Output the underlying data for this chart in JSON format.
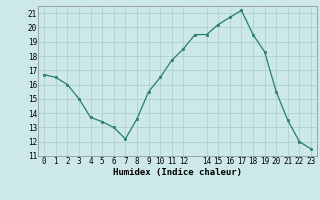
{
  "x": [
    0,
    1,
    2,
    3,
    4,
    5,
    6,
    7,
    8,
    9,
    10,
    11,
    12,
    13,
    14,
    15,
    16,
    17,
    18,
    19,
    20,
    21,
    22,
    23
  ],
  "y": [
    16.7,
    16.5,
    16.0,
    15.0,
    13.7,
    13.4,
    13.0,
    12.2,
    13.6,
    15.5,
    16.5,
    17.7,
    18.5,
    19.5,
    19.5,
    20.2,
    20.7,
    21.2,
    19.5,
    18.3,
    15.5,
    13.5,
    12.0,
    11.5
  ],
  "line_color": "#2a7d6e",
  "marker_color": "#2a7d6e",
  "bg_color": "#cce8e8",
  "grid_color": "#aacccc",
  "xlabel": "Humidex (Indice chaleur)",
  "ylim": [
    11,
    21.5
  ],
  "xlim": [
    -0.5,
    23.5
  ],
  "yticks": [
    11,
    12,
    13,
    14,
    15,
    16,
    17,
    18,
    19,
    20,
    21
  ],
  "xticks": [
    0,
    1,
    2,
    3,
    4,
    5,
    6,
    7,
    8,
    9,
    10,
    11,
    12,
    14,
    15,
    16,
    17,
    18,
    19,
    20,
    21,
    22,
    23
  ],
  "xtick_labels": [
    "0",
    "1",
    "2",
    "3",
    "4",
    "5",
    "6",
    "7",
    "8",
    "9",
    "10",
    "11",
    "12",
    "14",
    "15",
    "16",
    "17",
    "18",
    "19",
    "20",
    "21",
    "22",
    "23"
  ],
  "tick_fontsize": 5.5,
  "axis_fontsize": 6.5
}
